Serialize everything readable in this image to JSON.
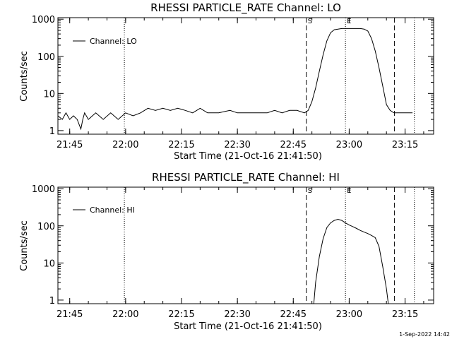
{
  "stamp": "1-Sep-2022 14:42",
  "chart_data": [
    {
      "type": "line",
      "title": "RHESSI PARTICLE_RATE Channel: LO",
      "xlabel": "Start Time (21-Oct-16 21:41:50)",
      "ylabel": "Counts/sec",
      "yscale": "log",
      "ylim": [
        0.8,
        1100
      ],
      "y_ticks": [
        "1",
        "10",
        "100",
        "1000"
      ],
      "x_ticks": [
        "21:45",
        "22:00",
        "22:15",
        "22:30",
        "22:45",
        "23:00",
        "23:15"
      ],
      "xlim": [
        "21:41:50",
        "23:22:40"
      ],
      "legend": {
        "location": "upper-left",
        "label": "Channel: LO"
      },
      "markers": [
        {
          "time": "22:48:30",
          "style": "dashed",
          "label": "S"
        },
        {
          "time": "22:59:00",
          "style": "dotted",
          "label": "E"
        },
        {
          "time": "23:12:10",
          "style": "dashed",
          "label": ""
        },
        {
          "time": "21:59:40",
          "style": "dotted",
          "label": ""
        },
        {
          "time": "23:17:30",
          "style": "dotted",
          "label": ""
        }
      ],
      "series": [
        {
          "name": "Channel: LO",
          "x": [
            "21:41:50",
            "21:43:00",
            "21:44:00",
            "21:45:00",
            "21:46:00",
            "21:47:00",
            "21:48:00",
            "21:48:30",
            "21:49:00",
            "21:50:00",
            "21:52:00",
            "21:54:00",
            "21:56:00",
            "21:58:00",
            "22:00:00",
            "22:02:00",
            "22:04:00",
            "22:06:00",
            "22:08:00",
            "22:10:00",
            "22:12:00",
            "22:14:00",
            "22:16:00",
            "22:18:00",
            "22:20:00",
            "22:22:00",
            "22:25:00",
            "22:28:00",
            "22:30:00",
            "22:32:00",
            "22:35:00",
            "22:38:00",
            "22:40:00",
            "22:42:00",
            "22:44:00",
            "22:46:00",
            "22:48:00",
            "22:49:00",
            "22:50:00",
            "22:51:00",
            "22:52:00",
            "22:53:00",
            "22:54:00",
            "22:55:00",
            "22:56:00",
            "22:58:00",
            "23:00:00",
            "23:02:00",
            "23:03:00",
            "23:04:00",
            "23:05:00",
            "23:06:00",
            "23:07:00",
            "23:08:00",
            "23:09:00",
            "23:10:00",
            "23:11:00",
            "23:12:00",
            "23:13:00",
            "23:15:00",
            "23:16:00",
            "23:17:00"
          ],
          "y": [
            2.5,
            2,
            3,
            2,
            2.5,
            2,
            1.1,
            2,
            3,
            2,
            3,
            2,
            3,
            2,
            3,
            2.5,
            3,
            4,
            3.5,
            4,
            3.5,
            4,
            3.5,
            3,
            4,
            3,
            3,
            3.5,
            3,
            3,
            3,
            3,
            3.5,
            3,
            3.5,
            3.5,
            3,
            3.5,
            6,
            14,
            40,
            110,
            260,
            430,
            520,
            560,
            560,
            560,
            560,
            540,
            480,
            300,
            140,
            50,
            16,
            5,
            3.5,
            3,
            3,
            3,
            3,
            3
          ]
        }
      ]
    },
    {
      "type": "line",
      "title": "RHESSI PARTICLE_RATE Channel: HI",
      "xlabel": "Start Time (21-Oct-16 21:41:50)",
      "ylabel": "Counts/sec",
      "yscale": "log",
      "ylim": [
        0.8,
        1100
      ],
      "y_ticks": [
        "1",
        "10",
        "100",
        "1000"
      ],
      "x_ticks": [
        "21:45",
        "22:00",
        "22:15",
        "22:30",
        "22:45",
        "23:00",
        "23:15"
      ],
      "xlim": [
        "21:41:50",
        "23:22:40"
      ],
      "legend": {
        "location": "upper-left",
        "label": "Channel: HI"
      },
      "markers": [
        {
          "time": "22:48:30",
          "style": "dashed",
          "label": "S"
        },
        {
          "time": "22:59:00",
          "style": "dotted",
          "label": "E"
        },
        {
          "time": "23:12:10",
          "style": "dashed",
          "label": ""
        },
        {
          "time": "21:59:40",
          "style": "dotted",
          "label": ""
        },
        {
          "time": "23:17:30",
          "style": "dotted",
          "label": ""
        }
      ],
      "series": [
        {
          "name": "Channel: HI",
          "x": [
            "22:50:30",
            "22:51:00",
            "22:52:00",
            "22:53:00",
            "22:54:00",
            "22:55:00",
            "22:56:00",
            "22:57:00",
            "22:58:00",
            "22:59:00",
            "23:00:00",
            "23:01:00",
            "23:02:00",
            "23:03:00",
            "23:04:00",
            "23:05:00",
            "23:06:00",
            "23:07:00",
            "23:08:00",
            "23:09:00",
            "23:10:00",
            "23:10:30"
          ],
          "y": [
            0.8,
            3,
            15,
            45,
            90,
            120,
            140,
            150,
            140,
            120,
            105,
            95,
            85,
            75,
            68,
            62,
            55,
            48,
            28,
            8,
            2,
            0.8
          ]
        }
      ]
    }
  ]
}
